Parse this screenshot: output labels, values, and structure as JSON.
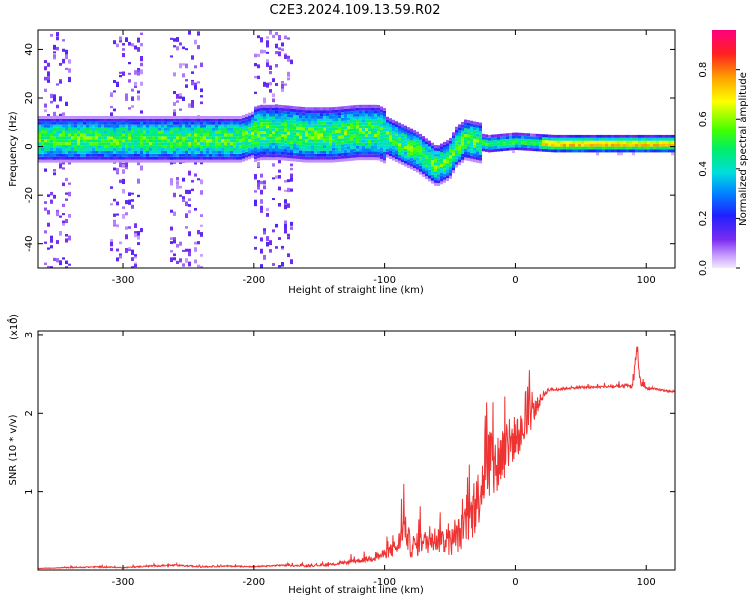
{
  "title": "C2E3.2024.109.13.59.R02",
  "chart_data": [
    {
      "type": "heatmap",
      "xlabel": "Height of straight line (km)",
      "ylabel": "Frequency (Hz)",
      "xlim": [
        -365,
        122
      ],
      "ylim": [
        -50,
        48
      ],
      "xticks": [
        -300,
        -200,
        -100,
        0,
        100
      ],
      "xtick_labels": [
        "-300",
        "-200",
        "-100",
        "0",
        "100"
      ],
      "yticks": [
        -40,
        -20,
        0,
        20,
        40
      ],
      "ytick_labels": [
        "-40",
        "-20",
        "0",
        "20",
        "40"
      ],
      "colorbar": {
        "label": "Normalized spectral amplitude",
        "range": [
          0,
          0.96
        ],
        "ticks": [
          0.0,
          0.2,
          0.4,
          0.6,
          0.8
        ],
        "tick_labels": [
          "0.0",
          "0.2",
          "0.4",
          "0.6",
          "0.8"
        ]
      },
      "ridge": {
        "x": [
          -360,
          -330,
          -300,
          -270,
          -240,
          -210,
          -195,
          -180,
          -160,
          -140,
          -120,
          -105,
          -90,
          -75,
          -60,
          -50,
          -45,
          -38,
          -30,
          -20,
          0,
          30,
          60,
          90,
          120
        ],
        "y": [
          3,
          3,
          3,
          3,
          3,
          3,
          6,
          6,
          5,
          5,
          6,
          6,
          2,
          -2,
          -8,
          -5,
          0,
          3,
          2,
          1,
          2,
          1,
          1,
          1,
          1
        ]
      }
    },
    {
      "type": "line",
      "xlabel": "Height of straight line (km)",
      "ylabel": "SNR (10 * v/v)",
      "multiplier_label": "(x10",
      "multiplier_exp": "4",
      "multiplier_close": ")",
      "xlim": [
        -365,
        122
      ],
      "ylim": [
        0,
        3.05
      ],
      "xticks": [
        -300,
        -200,
        -100,
        0,
        100
      ],
      "xtick_labels": [
        "-300",
        "-200",
        "-100",
        "0",
        "100"
      ],
      "yticks": [
        1,
        2,
        3
      ],
      "ytick_labels": [
        "1",
        "2",
        "3"
      ],
      "series": [
        {
          "name": "SNR",
          "color": "#ee3333",
          "x": [
            -365,
            -320,
            -300,
            -280,
            -260,
            -240,
            -220,
            -200,
            -180,
            -160,
            -140,
            -120,
            -110,
            -100,
            -90,
            -85,
            -80,
            -70,
            -60,
            -50,
            -40,
            -30,
            -25,
            -20,
            -15,
            -10,
            -5,
            0,
            5,
            10,
            20,
            25,
            30,
            40,
            50,
            60,
            70,
            80,
            90,
            93,
            95,
            100,
            110,
            122
          ],
          "y": [
            0.02,
            0.04,
            0.03,
            0.05,
            0.06,
            0.04,
            0.05,
            0.04,
            0.06,
            0.05,
            0.07,
            0.12,
            0.15,
            0.2,
            0.3,
            0.55,
            0.3,
            0.35,
            0.4,
            0.35,
            0.5,
            0.8,
            1.2,
            1.4,
            1.3,
            1.5,
            1.6,
            1.7,
            1.75,
            1.9,
            2.2,
            2.3,
            2.3,
            2.32,
            2.33,
            2.33,
            2.34,
            2.34,
            2.35,
            2.9,
            2.4,
            2.32,
            2.3,
            2.27
          ],
          "noise": [
            0.005,
            0.015,
            0.01,
            0.02,
            0.02,
            0.015,
            0.015,
            0.015,
            0.02,
            0.02,
            0.03,
            0.06,
            0.08,
            0.12,
            0.25,
            0.4,
            0.3,
            0.3,
            0.35,
            0.35,
            0.5,
            0.7,
            0.9,
            1.1,
            0.9,
            0.8,
            0.7,
            0.55,
            0.5,
            0.4,
            0.12,
            0.05,
            0.04,
            0.03,
            0.03,
            0.03,
            0.03,
            0.04,
            0.08,
            0.25,
            0.1,
            0.03,
            0.03,
            0.02
          ]
        }
      ]
    }
  ]
}
